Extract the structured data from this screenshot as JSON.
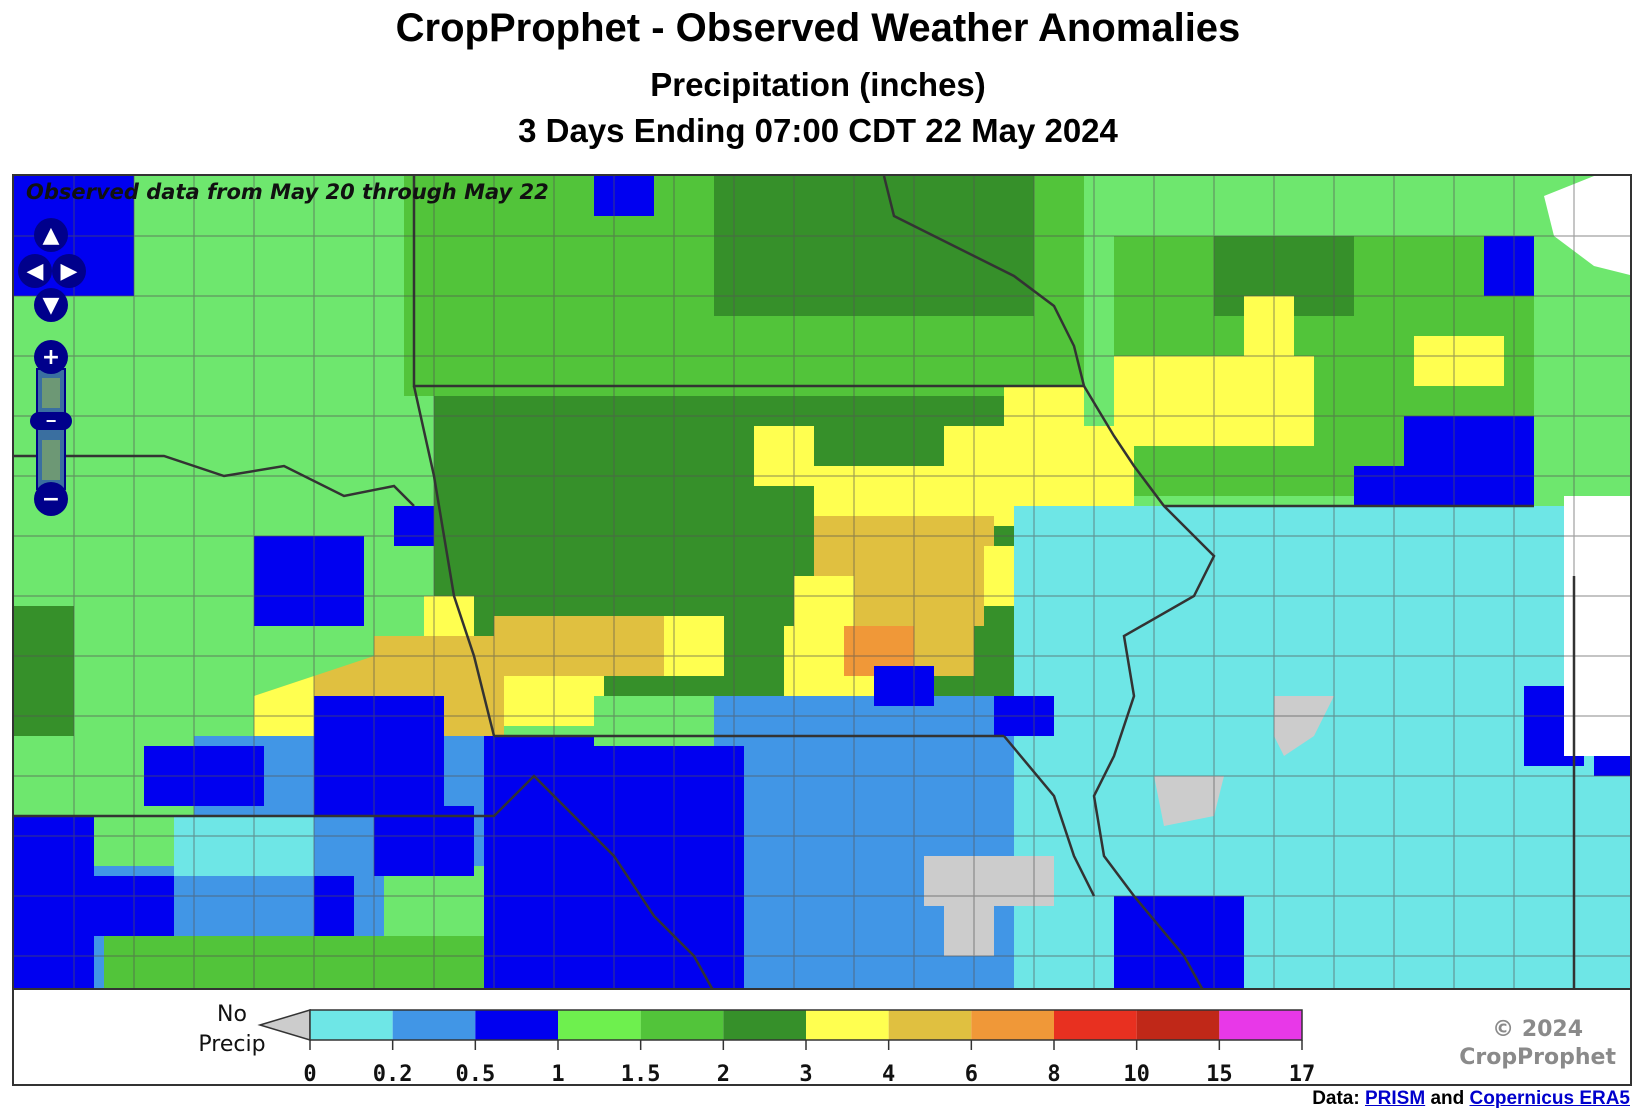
{
  "title": "CropProphet - Observed Weather Anomalies",
  "subtitle": "Precipitation (inches)",
  "period": "3 Days Ending 07:00 CDT 22 May 2024",
  "map": {
    "overlay_text": "Observed data from May 20 through May 22",
    "controls": {
      "pan_up": "▲",
      "pan_left": "◀",
      "pan_right": "▶",
      "pan_down": "▼",
      "zoom_in": "+",
      "zoom_out": "−",
      "zoom_slider": "−"
    }
  },
  "legend": {
    "no_precip_line1": "No",
    "no_precip_line2": "Precip",
    "no_precip_color": "#cccccc",
    "ticks": [
      "0",
      "0.2",
      "0.5",
      "1",
      "1.5",
      "2",
      "3",
      "4",
      "6",
      "8",
      "10",
      "15",
      "17"
    ],
    "colors": [
      "#6ee6e6",
      "#4196e6",
      "#0000f0",
      "#6ef04e",
      "#52c43a",
      "#36902a",
      "#ffff50",
      "#e0c040",
      "#f09838",
      "#e83020",
      "#c02818",
      "#e838e8"
    ]
  },
  "copyright_line1": "© 2024",
  "copyright_line2": "CropProphet",
  "credits": {
    "prefix": "Data:",
    "link1": "PRISM",
    "joiner": "and",
    "link2": "Copernicus ERA5"
  }
}
